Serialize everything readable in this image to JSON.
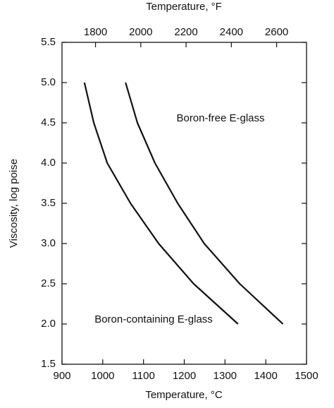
{
  "chart_data": {
    "type": "line",
    "x_label": "Temperature, °C",
    "x2_label": "Temperature, °F",
    "y_label": "Viscosity, log poise",
    "xlim": [
      900,
      1500
    ],
    "xticks": [
      900,
      1000,
      1100,
      1200,
      1300,
      1400,
      1500
    ],
    "x2lim": [
      1652,
      2732
    ],
    "x2ticks": [
      1800,
      2000,
      2200,
      2400,
      2600
    ],
    "ylim": [
      1.5,
      5.5
    ],
    "yticks": [
      1.5,
      {
        "value": 2,
        "label": "2.0"
      },
      2.5,
      {
        "value": 3,
        "label": "3.0"
      },
      3.5,
      {
        "value": 4,
        "label": "4.0"
      },
      4.5,
      {
        "value": 5,
        "label": "5.0"
      },
      5.5
    ],
    "series": [
      {
        "name": "Boron-containing E-glass",
        "color": "#111111",
        "x": [
          955,
          978,
          1011,
          1068,
          1137,
          1223,
          1332
        ],
        "values": [
          5.0,
          4.5,
          4.0,
          3.5,
          3.0,
          2.5,
          2.0
        ]
      },
      {
        "name": "Boron-free E-glass",
        "color": "#111111",
        "x": [
          1056,
          1085,
          1128,
          1184,
          1249,
          1336,
          1442
        ],
        "values": [
          5.0,
          4.5,
          4.0,
          3.5,
          3.0,
          2.5,
          2.0
        ]
      }
    ]
  }
}
